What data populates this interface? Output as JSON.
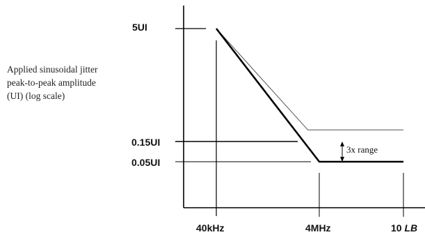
{
  "chart_data": {
    "type": "line",
    "title": "",
    "ylabel_lines": [
      "Applied sinusoidal jitter",
      "peak-to-peak amplitude",
      "(UI) (log scale)"
    ],
    "xlabel": "",
    "x_scale": "log",
    "y_scale": "log",
    "x_ticks": [
      {
        "label": "40kHz",
        "value": 40000
      },
      {
        "label": "4MHz",
        "value": 4000000
      },
      {
        "label_prefix": "10 ",
        "label_italic": "LB",
        "value": 10000000
      }
    ],
    "y_ticks": [
      {
        "label": "5UI",
        "value": 5
      },
      {
        "label": "0.15UI",
        "value": 0.15
      },
      {
        "label": "0.05UI",
        "value": 0.05
      }
    ],
    "series": [
      {
        "style": "thick",
        "color": "#000000",
        "points": [
          {
            "x": 40000,
            "y": 5
          },
          {
            "x": 4000000,
            "y": 0.05
          },
          {
            "x": 10000000,
            "y": 0.05
          }
        ]
      },
      {
        "style": "thin",
        "color": "#555555",
        "points": [
          {
            "x": 40000,
            "y": 5
          },
          {
            "x": 2400000,
            "y": 0.15
          },
          {
            "x": 10000000,
            "y": 0.15
          }
        ]
      }
    ],
    "annotations": [
      {
        "text": "3x range",
        "x": 4000000,
        "y_from": 0.05,
        "y_to": 0.15
      }
    ],
    "grid": false,
    "legend": "none"
  }
}
